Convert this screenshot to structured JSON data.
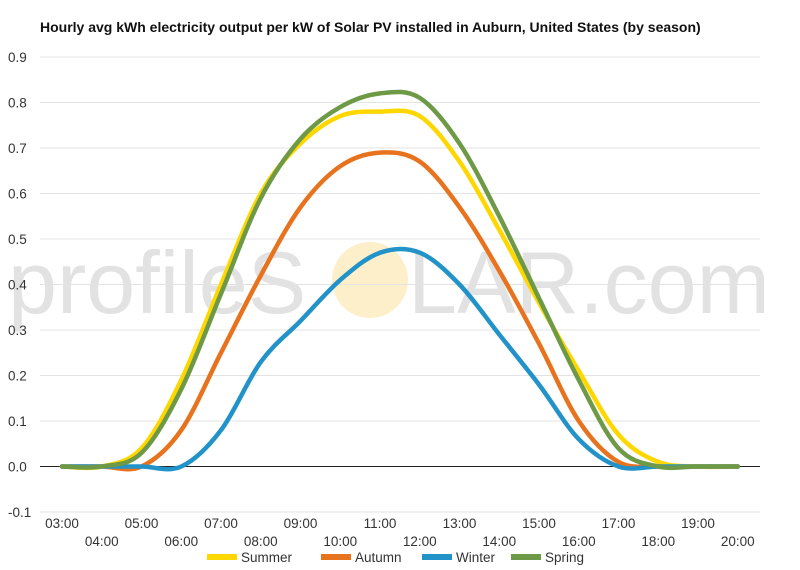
{
  "watermark": {
    "left": "profileS",
    "right": "LAR.com"
  },
  "chart_data": {
    "type": "line",
    "title": "Hourly avg kWh electricity output per kW of Solar PV installed in Auburn, United States (by season)",
    "xlabel": "",
    "ylabel": "",
    "ylim": [
      -0.1,
      0.9
    ],
    "yticks": [
      "-0.1",
      "0.0",
      "0.1",
      "0.2",
      "0.3",
      "0.4",
      "0.5",
      "0.6",
      "0.7",
      "0.8",
      "0.9"
    ],
    "grid": true,
    "legend_position": "bottom",
    "x": [
      "03:00",
      "04:00",
      "05:00",
      "06:00",
      "07:00",
      "08:00",
      "09:00",
      "10:00",
      "11:00",
      "12:00",
      "13:00",
      "14:00",
      "15:00",
      "16:00",
      "17:00",
      "18:00",
      "19:00",
      "20:00"
    ],
    "series": [
      {
        "name": "Summer",
        "color": "#ffd700",
        "values": [
          0.0,
          0.0,
          0.04,
          0.19,
          0.4,
          0.6,
          0.71,
          0.77,
          0.78,
          0.77,
          0.67,
          0.52,
          0.36,
          0.21,
          0.07,
          0.01,
          0.0,
          0.0
        ]
      },
      {
        "name": "Autumn",
        "color": "#e8731f",
        "values": [
          0.0,
          0.0,
          0.0,
          0.08,
          0.25,
          0.42,
          0.57,
          0.66,
          0.69,
          0.67,
          0.57,
          0.43,
          0.27,
          0.1,
          0.01,
          0.0,
          0.0,
          0.0
        ]
      },
      {
        "name": "Winter",
        "color": "#2293c8",
        "values": [
          0.0,
          0.0,
          0.0,
          0.0,
          0.08,
          0.23,
          0.32,
          0.41,
          0.47,
          0.47,
          0.4,
          0.29,
          0.18,
          0.06,
          0.0,
          0.0,
          0.0,
          0.0
        ]
      },
      {
        "name": "Spring",
        "color": "#6e9a48",
        "values": [
          0.0,
          0.0,
          0.03,
          0.17,
          0.38,
          0.59,
          0.72,
          0.79,
          0.82,
          0.81,
          0.71,
          0.55,
          0.37,
          0.19,
          0.04,
          0.0,
          0.0,
          0.0
        ]
      }
    ]
  }
}
